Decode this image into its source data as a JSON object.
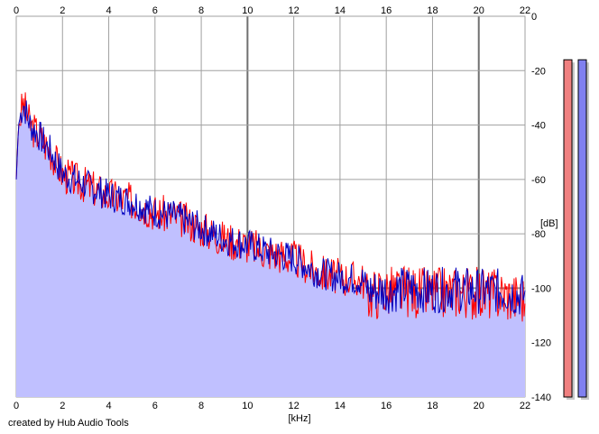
{
  "chart_data": {
    "type": "area",
    "xlabel": "[kHz]",
    "ylabel": "[dB]",
    "x_ticks": [
      0,
      2,
      4,
      6,
      8,
      10,
      12,
      14,
      16,
      18,
      20,
      22
    ],
    "y_ticks": [
      0,
      -20,
      -40,
      -60,
      -80,
      -100,
      -120,
      -140
    ],
    "xlim": [
      0,
      22
    ],
    "ylim": [
      -140,
      0
    ],
    "x_tick_position": "top and bottom",
    "y_tick_position": "right",
    "grid": true,
    "series": [
      {
        "color": "#ff0000",
        "x": [
          0,
          0.1,
          0.3,
          0.6,
          1.0,
          1.5,
          2.0,
          3.0,
          4.0,
          5.0,
          6.0,
          7.0,
          8.0,
          9.0,
          10.0,
          11.0,
          12.0,
          13.0,
          14.0,
          15.0,
          15.2,
          16.0,
          17.0,
          18.0,
          19.0,
          20.0,
          21.0,
          22.0
        ],
        "values": [
          -60,
          -40,
          -32,
          -40,
          -44,
          -50,
          -58,
          -62,
          -66,
          -68,
          -72,
          -74,
          -78,
          -82,
          -84,
          -87,
          -89,
          -94,
          -96,
          -97,
          -102,
          -101,
          -101,
          -102,
          -101,
          -102,
          -102,
          -104
        ]
      },
      {
        "color": "#0000c0",
        "x": [
          0,
          0.1,
          0.3,
          0.6,
          1.0,
          1.5,
          2.0,
          3.0,
          4.0,
          5.0,
          6.0,
          7.0,
          8.0,
          9.0,
          10.0,
          11.0,
          12.0,
          13.0,
          14.0,
          15.0,
          15.2,
          16.0,
          17.0,
          18.0,
          19.0,
          20.0,
          21.0,
          22.0
        ],
        "values": [
          -60,
          -40,
          -32,
          -40,
          -44,
          -50,
          -58,
          -62,
          -66,
          -68,
          -72,
          -74,
          -78,
          -82,
          -84,
          -87,
          -89,
          -94,
          -96,
          -97,
          -101,
          -101,
          -100,
          -101,
          -100,
          -101,
          -101,
          -103
        ]
      }
    ],
    "level_meters": [
      {
        "color": "#f08080",
        "level_db": -16
      },
      {
        "color": "#8080f0",
        "level_db": -16
      }
    ],
    "fill_color": "#c0c0ff",
    "line_color": "#0000c0",
    "meter_range_db": [
      -140,
      -16
    ]
  },
  "credit": "created by Hub Audio Tools"
}
